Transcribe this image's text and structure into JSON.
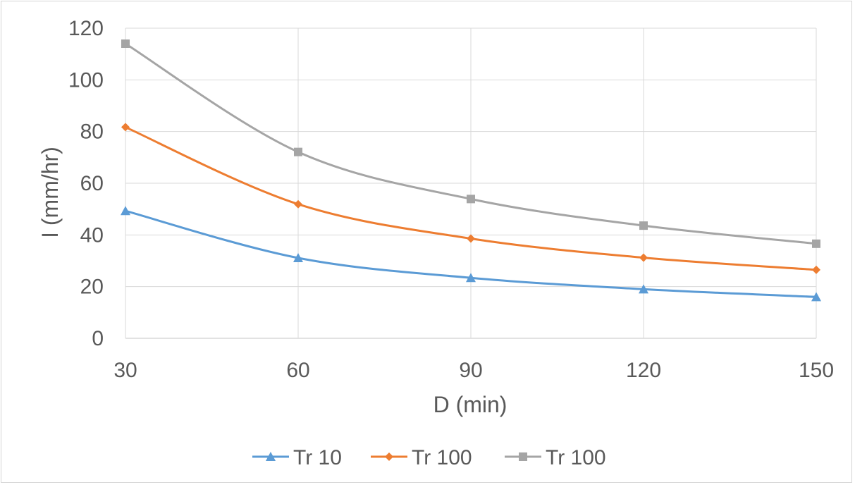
{
  "chart_data": {
    "type": "line",
    "title": "",
    "xlabel": "D (min)",
    "ylabel": "I (mm/hr)",
    "x": [
      30,
      60,
      90,
      120,
      150
    ],
    "x_ticks": [
      "30",
      "60",
      "90",
      "120",
      "150"
    ],
    "y_ticks": [
      "0",
      "20",
      "40",
      "60",
      "80",
      "100",
      "120"
    ],
    "xlim": [
      30,
      150
    ],
    "ylim": [
      0,
      120
    ],
    "grid": true,
    "smooth": true,
    "legend_position": "bottom",
    "series": [
      {
        "name": "Tr 10",
        "values": [
          49.3,
          31.1,
          23.4,
          19.0,
          16.0
        ],
        "color": "#5b9bd5",
        "marker": "triangle"
      },
      {
        "name": "Tr 100",
        "values": [
          81.7,
          51.9,
          38.6,
          31.2,
          26.5
        ],
        "color": "#ed7d31",
        "marker": "diamond"
      },
      {
        "name": "Tr 100",
        "values": [
          114.0,
          72.1,
          53.9,
          43.6,
          36.6
        ],
        "color": "#a5a5a5",
        "marker": "square"
      }
    ]
  }
}
